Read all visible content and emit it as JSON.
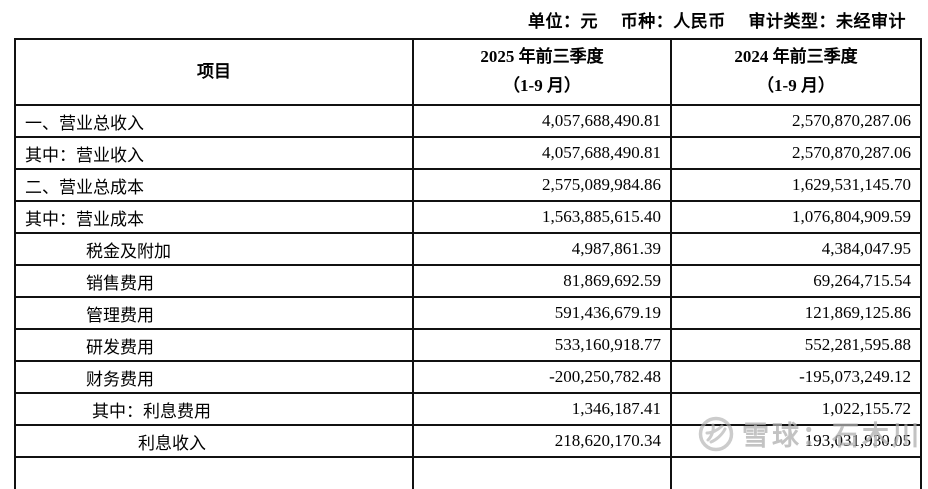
{
  "meta": {
    "unit": "单位：元",
    "currency": "币种：人民币",
    "audit_type": "审计类型：未经审计"
  },
  "table": {
    "header": {
      "item": "项目",
      "col_2025_line1": "2025 年前三季度",
      "col_2025_line2": "（1-9 月）",
      "col_2024_line1": "2024 年前三季度",
      "col_2024_line2": "（1-9 月）"
    },
    "rows": [
      {
        "label": "一、营业总收入",
        "indent": 0,
        "v2025": "4,057,688,490.81",
        "v2024": "2,570,870,287.06"
      },
      {
        "label": "其中：营业收入",
        "indent": 0,
        "v2025": "4,057,688,490.81",
        "v2024": "2,570,870,287.06"
      },
      {
        "label": "二、营业总成本",
        "indent": 0,
        "v2025": "2,575,089,984.86",
        "v2024": "1,629,531,145.70"
      },
      {
        "label": "其中：营业成本",
        "indent": 0,
        "v2025": "1,563,885,615.40",
        "v2024": "1,076,804,909.59"
      },
      {
        "label": "税金及附加",
        "indent": 1,
        "v2025": "4,987,861.39",
        "v2024": "4,384,047.95"
      },
      {
        "label": "销售费用",
        "indent": 1,
        "v2025": "81,869,692.59",
        "v2024": "69,264,715.54"
      },
      {
        "label": "管理费用",
        "indent": 1,
        "v2025": "591,436,679.19",
        "v2024": "121,869,125.86"
      },
      {
        "label": "研发费用",
        "indent": 1,
        "v2025": "533,160,918.77",
        "v2024": "552,281,595.88"
      },
      {
        "label": "财务费用",
        "indent": 1,
        "v2025": "-200,250,782.48",
        "v2024": "-195,073,249.12"
      },
      {
        "label": "其中：利息费用",
        "indent": 2,
        "v2025": "1,346,187.41",
        "v2024": "1,022,155.72"
      },
      {
        "label": "利息收入",
        "indent": 3,
        "v2025": "218,620,170.34",
        "v2024": "193,031,930.05"
      }
    ]
  },
  "watermark": {
    "icon": "xueqiu-snowball-logo",
    "text": "雪球：石木川",
    "color": "#afafaf"
  }
}
